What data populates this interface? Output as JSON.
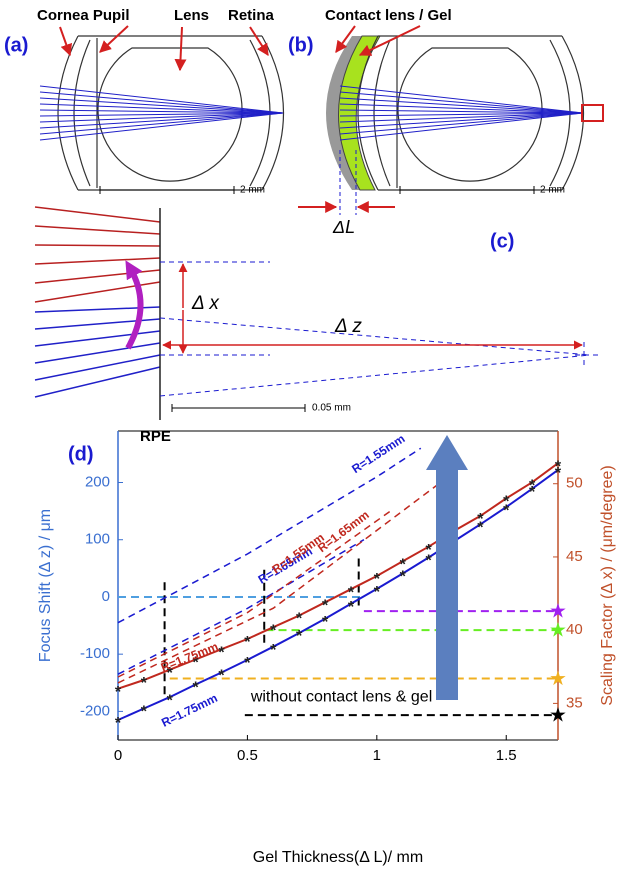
{
  "figure": {
    "a": {
      "label": "(a)",
      "cornea_pupil": "Cornea Pupil",
      "lens": "Lens",
      "retina": "Retina",
      "scale": "2 mm"
    },
    "b": {
      "label": "(b)",
      "gel": "Contact lens / Gel",
      "scale": "2 mm",
      "delta_l": "ΔL"
    },
    "c": {
      "label": "(c)",
      "delta_x": "Δ x",
      "delta_z": "Δ z",
      "scale": "0.05 mm",
      "rpe": "RPE"
    },
    "d": {
      "label": "(d)"
    }
  },
  "chart_data": {
    "type": "line",
    "xlabel": "Gel Thickness(Δ L)/ mm",
    "ylabel": "Focus Shift (Δ z) / μm",
    "y2label": "Scaling Factor (Δ x) / (μm/degree)",
    "annotation": "without contact lens & gel",
    "xlim": [
      0,
      1.7
    ],
    "xticks": [
      0,
      0.5,
      1,
      1.5
    ],
    "ylim": [
      -250,
      290
    ],
    "yticks": [
      -200,
      -100,
      0,
      100,
      200
    ],
    "y2lim": [
      32.5,
      53.6
    ],
    "y2ticks": [
      35,
      40,
      45,
      50
    ],
    "x": [
      0,
      0.1,
      0.2,
      0.3,
      0.4,
      0.5,
      0.6,
      0.7,
      0.8,
      0.9,
      1.0,
      1.1,
      1.2,
      1.3,
      1.4,
      1.5,
      1.6,
      1.7
    ],
    "series": [
      {
        "name": "R=1.75mm",
        "color": "#1a1ad0",
        "axis": "y",
        "dashed": false,
        "values": [
          -215,
          -195,
          -175,
          -153,
          -132,
          -110,
          -87,
          -63,
          -38,
          -12,
          14,
          41,
          69,
          98,
          127,
          157,
          189,
          222
        ]
      },
      {
        "name": "R=1.75mm",
        "color": "#c0281e",
        "axis": "y2",
        "dashed": false,
        "values": [
          36.0,
          36.6,
          37.3,
          38.0,
          38.7,
          39.4,
          40.2,
          41.0,
          41.9,
          42.8,
          43.7,
          44.7,
          45.7,
          46.8,
          47.8,
          49.0,
          50.1,
          51.4
        ]
      },
      {
        "name": "R=1.55mm",
        "color": "#1a1ad0",
        "axis": "y",
        "dashed": true,
        "x": [
          0,
          0.5,
          1.0,
          1.17
        ],
        "values": [
          -45,
          75,
          210,
          260
        ]
      },
      {
        "name": "R=1.65mm",
        "color": "#1a1ad0",
        "axis": "y",
        "dashed": true,
        "x": [
          0,
          0.5,
          0.95
        ],
        "values": [
          -135,
          -20,
          100
        ]
      },
      {
        "name": "R=1.55mm",
        "color": "#c0281e",
        "axis": "y2",
        "dashed": true,
        "x": [
          0,
          0.5,
          1.05
        ],
        "values": [
          36.8,
          41.2,
          48.1
        ]
      },
      {
        "name": "R=1.65mm",
        "color": "#c0281e",
        "axis": "y2",
        "dashed": true,
        "x": [
          0,
          0.6,
          1.3
        ],
        "values": [
          36.4,
          41.5,
          50.8
        ]
      }
    ],
    "hlines": [
      {
        "axis": "y",
        "value": 0,
        "from": 0,
        "to": 0.95,
        "color": "#4f9fe0",
        "star": false
      },
      {
        "axis": "y2",
        "value": 41.3,
        "from": 0.95,
        "to": 1.7,
        "color": "#a020f0",
        "star": true
      },
      {
        "axis": "y2",
        "value": 40.0,
        "from": 0.57,
        "to": 1.7,
        "color": "#66ee22",
        "star": true
      },
      {
        "axis": "y2",
        "value": 36.7,
        "from": 0.2,
        "to": 1.7,
        "color": "#f0b020",
        "star": true
      },
      {
        "axis": "y2",
        "value": 34.2,
        "from": 0.49,
        "to": 1.7,
        "color": "#000000",
        "star": true
      }
    ],
    "vlines": [
      {
        "x": 0.18,
        "from": -170,
        "to": 30
      },
      {
        "x": 0.565,
        "from": -80,
        "to": 55
      },
      {
        "x": 0.93,
        "from": -15,
        "to": 70
      }
    ]
  }
}
